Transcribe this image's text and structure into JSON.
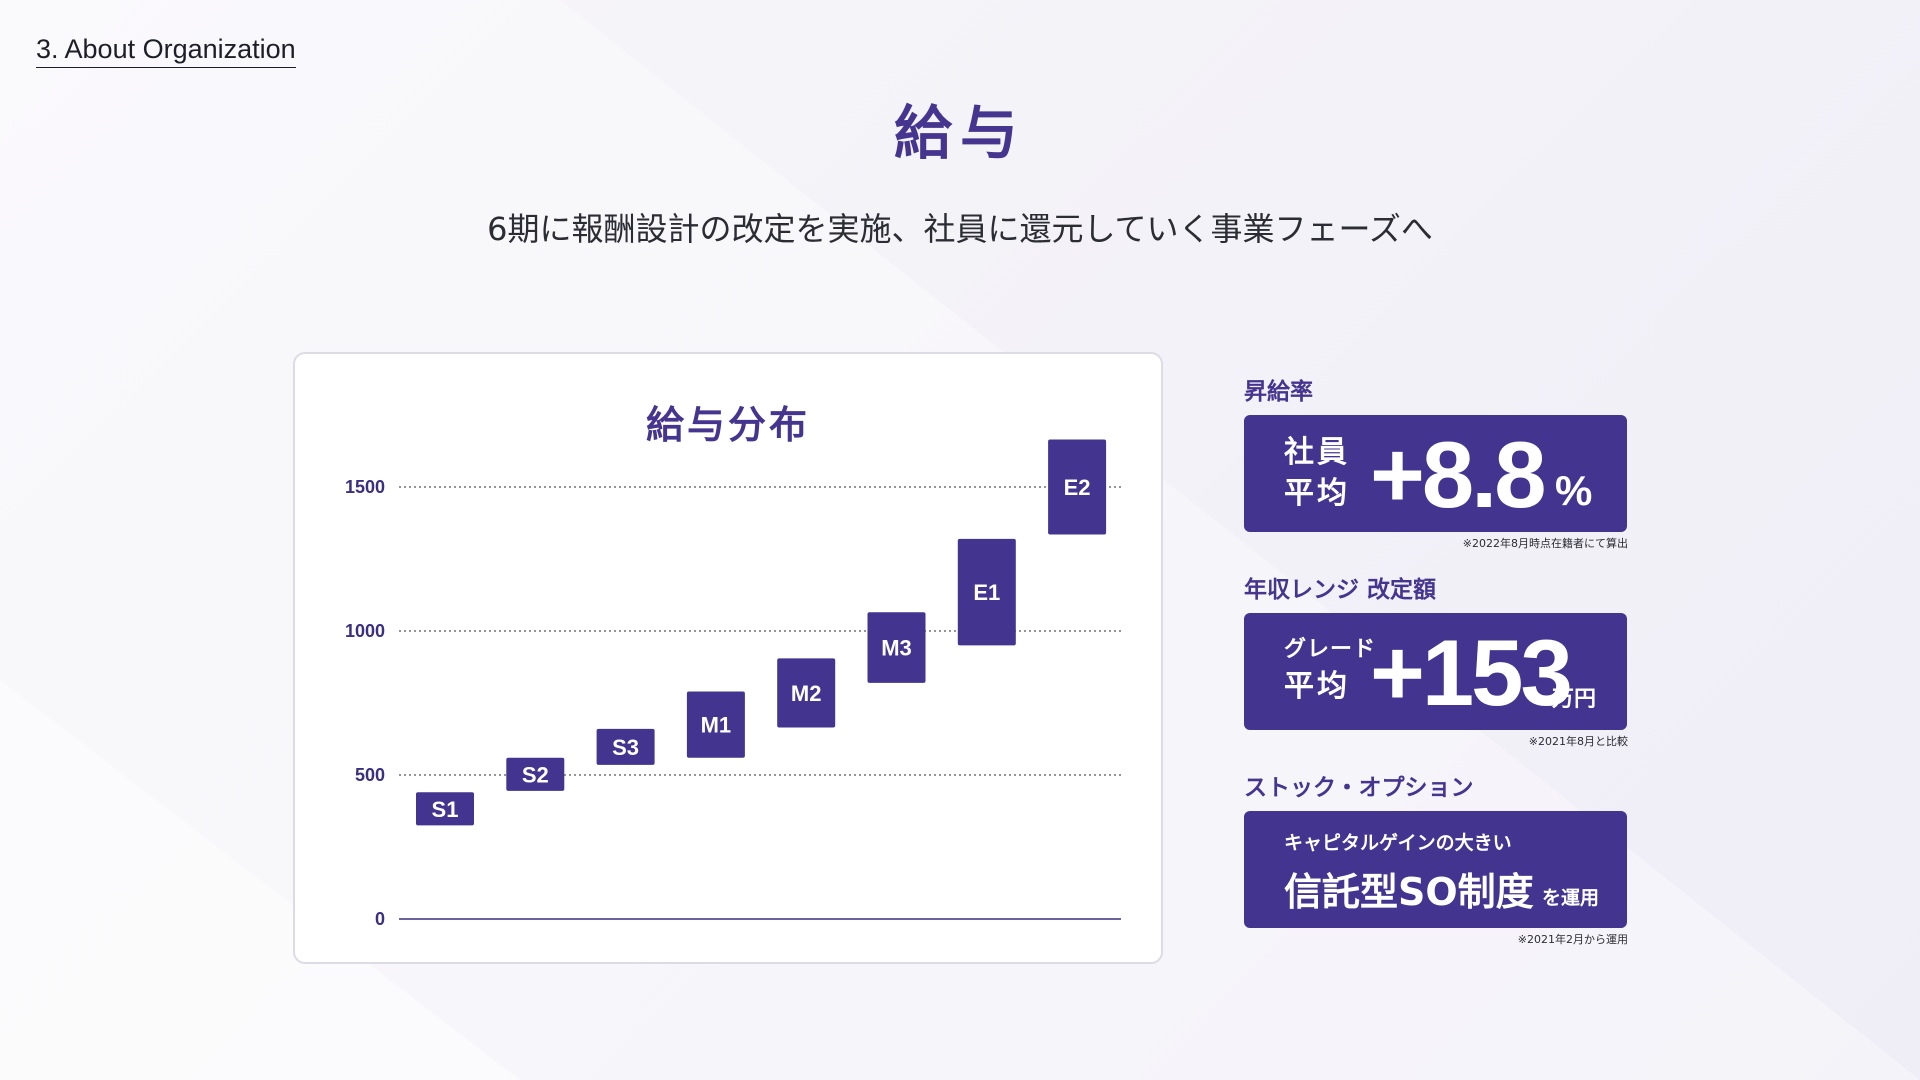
{
  "section_label": "3. About Organization",
  "page_title": "給与",
  "subtitle": "6期に報酬設計の改定を実施、社員に還元していく事業フェーズへ",
  "chart_data": {
    "type": "bar",
    "title": "給与分布",
    "xlabel": "",
    "ylabel": "",
    "ylim": [
      0,
      1600
    ],
    "yticks": [
      0,
      500,
      1000,
      1500
    ],
    "grid": true,
    "grid_style": "dotted",
    "color": "#43348f",
    "categories": [
      "S1",
      "S2",
      "S3",
      "M1",
      "M2",
      "M3",
      "E1",
      "E2"
    ],
    "ranges": [
      {
        "grade": "S1",
        "low": 325,
        "high": 440
      },
      {
        "grade": "S2",
        "low": 445,
        "high": 560
      },
      {
        "grade": "S3",
        "low": 535,
        "high": 660
      },
      {
        "grade": "M1",
        "low": 560,
        "high": 790
      },
      {
        "grade": "M2",
        "low": 665,
        "high": 905
      },
      {
        "grade": "M3",
        "low": 820,
        "high": 1065
      },
      {
        "grade": "E1",
        "low": 950,
        "high": 1320
      },
      {
        "grade": "E2",
        "low": 1335,
        "high": 1665
      }
    ]
  },
  "kpis": [
    {
      "heading": "昇給率",
      "lines": [
        "社員",
        "平均"
      ],
      "value": "+8.8",
      "unit": "%",
      "note": "※2022年8月時点在籍者にて算出"
    },
    {
      "heading": "年収レンジ 改定額",
      "lines": [
        "グレード",
        "平均"
      ],
      "value": "+153",
      "unit": "万円",
      "note": "※2021年8月と比較"
    },
    {
      "heading": "ストック・オプション",
      "line_top": "キャピタルゲインの大きい",
      "main": "信託型SO制度",
      "suffix": "を運用",
      "note": "※2021年2月から運用"
    }
  ]
}
